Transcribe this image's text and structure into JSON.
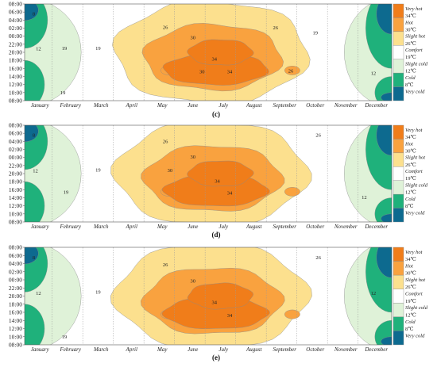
{
  "chart_data": [
    {
      "type": "heatmap",
      "caption": "(c)",
      "y_ticks": [
        "08:00",
        "06:00",
        "04:00",
        "02:00",
        "00:00",
        "22:00",
        "20:00",
        "18:00",
        "16:00",
        "14:00",
        "12:00",
        "10:00",
        "08:00"
      ],
      "x_ticks": [
        "January",
        "February",
        "March",
        "April",
        "May",
        "June",
        "July",
        "August",
        "September",
        "October",
        "November",
        "December"
      ],
      "contour_labels": [
        {
          "text": "12",
          "month": 0.45,
          "hour": 11.1
        },
        {
          "text": "19",
          "month": 1.25,
          "hour": 22.0
        },
        {
          "text": "19",
          "month": 2.4,
          "hour": 11.0
        },
        {
          "text": "19",
          "month": 1.3,
          "hour": 11.0
        },
        {
          "text": "26",
          "month": 4.6,
          "hour": 5.8
        },
        {
          "text": "30",
          "month": 5.5,
          "hour": 8.4
        },
        {
          "text": "34",
          "month": 6.2,
          "hour": 13.7
        },
        {
          "text": "34",
          "month": 6.7,
          "hour": 16.8
        },
        {
          "text": "30",
          "month": 5.8,
          "hour": 16.8
        },
        {
          "text": "26",
          "month": 8.7,
          "hour": 16.6
        },
        {
          "text": "26",
          "month": 8.2,
          "hour": 5.9
        },
        {
          "text": "19",
          "month": 9.5,
          "hour": 7.2
        },
        {
          "text": "12",
          "month": 11.4,
          "hour": 17.2
        },
        {
          "text": "8",
          "month": 0.3,
          "hour": 2.5
        }
      ]
    },
    {
      "type": "heatmap",
      "caption": "(d)",
      "y_ticks": [
        "08:00",
        "06:00",
        "04:00",
        "02:00",
        "00:00",
        "22:00",
        "20:00",
        "18:00",
        "16:00",
        "14:00",
        "12:00",
        "10:00",
        "08:00"
      ],
      "x_ticks": [
        "January",
        "February",
        "March",
        "April",
        "May",
        "June",
        "July",
        "August",
        "September",
        "October",
        "November",
        "December"
      ],
      "contour_labels": [
        {
          "text": "12",
          "month": 0.35,
          "hour": 11.3
        },
        {
          "text": "19",
          "month": 1.35,
          "hour": 16.6
        },
        {
          "text": "19",
          "month": 2.4,
          "hour": 11.1
        },
        {
          "text": "26",
          "month": 4.6,
          "hour": 4.0
        },
        {
          "text": "30",
          "month": 5.5,
          "hour": 7.9
        },
        {
          "text": "34",
          "month": 6.3,
          "hour": 13.9
        },
        {
          "text": "34",
          "month": 6.7,
          "hour": 16.8
        },
        {
          "text": "30",
          "month": 4.75,
          "hour": 11.2
        },
        {
          "text": "26",
          "month": 9.6,
          "hour": 2.5
        },
        {
          "text": "12",
          "month": 11.1,
          "hour": 17.9
        },
        {
          "text": "8",
          "month": 0.3,
          "hour": 2.5
        }
      ]
    },
    {
      "type": "heatmap",
      "caption": "(e)",
      "y_ticks": [
        "08:00",
        "06:00",
        "04:00",
        "02:00",
        "00:00",
        "22:00",
        "20:00",
        "18:00",
        "16:00",
        "14:00",
        "12:00",
        "10:00",
        "08:00"
      ],
      "x_ticks": [
        "January",
        "February",
        "March",
        "April",
        "May",
        "June",
        "July",
        "August",
        "September",
        "October",
        "November",
        "December"
      ],
      "contour_labels": [
        {
          "text": "12",
          "month": 0.45,
          "hour": 11.3
        },
        {
          "text": "19",
          "month": 1.3,
          "hour": 22.0
        },
        {
          "text": "19",
          "month": 2.4,
          "hour": 11.0
        },
        {
          "text": "26",
          "month": 4.6,
          "hour": 4.3
        },
        {
          "text": "30",
          "month": 5.5,
          "hour": 8.3
        },
        {
          "text": "34",
          "month": 6.2,
          "hour": 13.6
        },
        {
          "text": "34",
          "month": 6.7,
          "hour": 16.8
        },
        {
          "text": "26",
          "month": 9.6,
          "hour": 2.5
        },
        {
          "text": "12",
          "month": 11.4,
          "hour": 11.3
        },
        {
          "text": "8",
          "month": 0.3,
          "hour": 2.5
        }
      ]
    }
  ],
  "legend": {
    "bands": [
      {
        "label": "Very hot",
        "color": "#f07d1a"
      },
      {
        "label": "Hot",
        "color": "#f9a23f"
      },
      {
        "label": "Slight hot",
        "color": "#fce08e"
      },
      {
        "label": "Comfort",
        "color": "#ffffff"
      },
      {
        "label": "Slight cold",
        "color": "#dff2d8"
      },
      {
        "label": "Cold",
        "color": "#1fb17b"
      },
      {
        "label": "Very cold",
        "color": "#0d6a8f"
      }
    ],
    "thresholds": [
      "34℃",
      "30℃",
      "26℃",
      "19℃",
      "12℃",
      "8℃"
    ]
  },
  "colors": {
    "very_hot": "#f07d1a",
    "hot": "#f9a23f",
    "slight_hot": "#fce08e",
    "comfort": "#ffffff",
    "slight_cold": "#dff2d8",
    "cold": "#1fb17b",
    "very_cold": "#0d6a8f"
  }
}
